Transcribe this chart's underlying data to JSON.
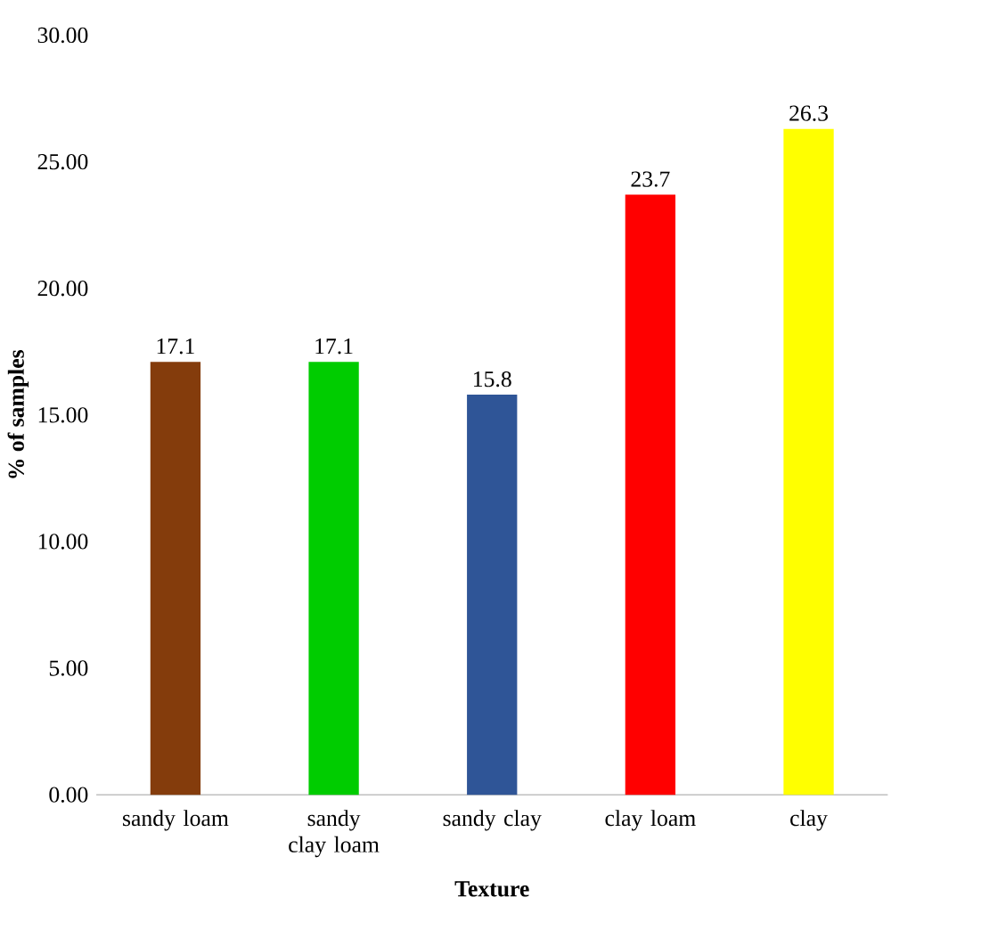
{
  "chart_data": {
    "type": "bar",
    "xlabel": "Texture",
    "ylabel": "% of samples",
    "categories": [
      "sandy loam",
      "sandy clay loam",
      "sandy clay",
      "clay loam",
      "clay"
    ],
    "values": [
      17.1,
      17.1,
      15.8,
      23.7,
      26.3
    ],
    "colors": [
      "#843c0c",
      "#00cc00",
      "#2f5597",
      "#ff0000",
      "#ffff00"
    ],
    "ylim": [
      0,
      30
    ],
    "yticks": [
      {
        "value": 0,
        "label": "0.00"
      },
      {
        "value": 5,
        "label": "5.00"
      },
      {
        "value": 10,
        "label": "10.00"
      },
      {
        "value": 15,
        "label": "15.00"
      },
      {
        "value": 20,
        "label": "20.00"
      },
      {
        "value": 25,
        "label": "25.00"
      },
      {
        "value": 30,
        "label": "30.00"
      }
    ],
    "data_labels": true
  }
}
